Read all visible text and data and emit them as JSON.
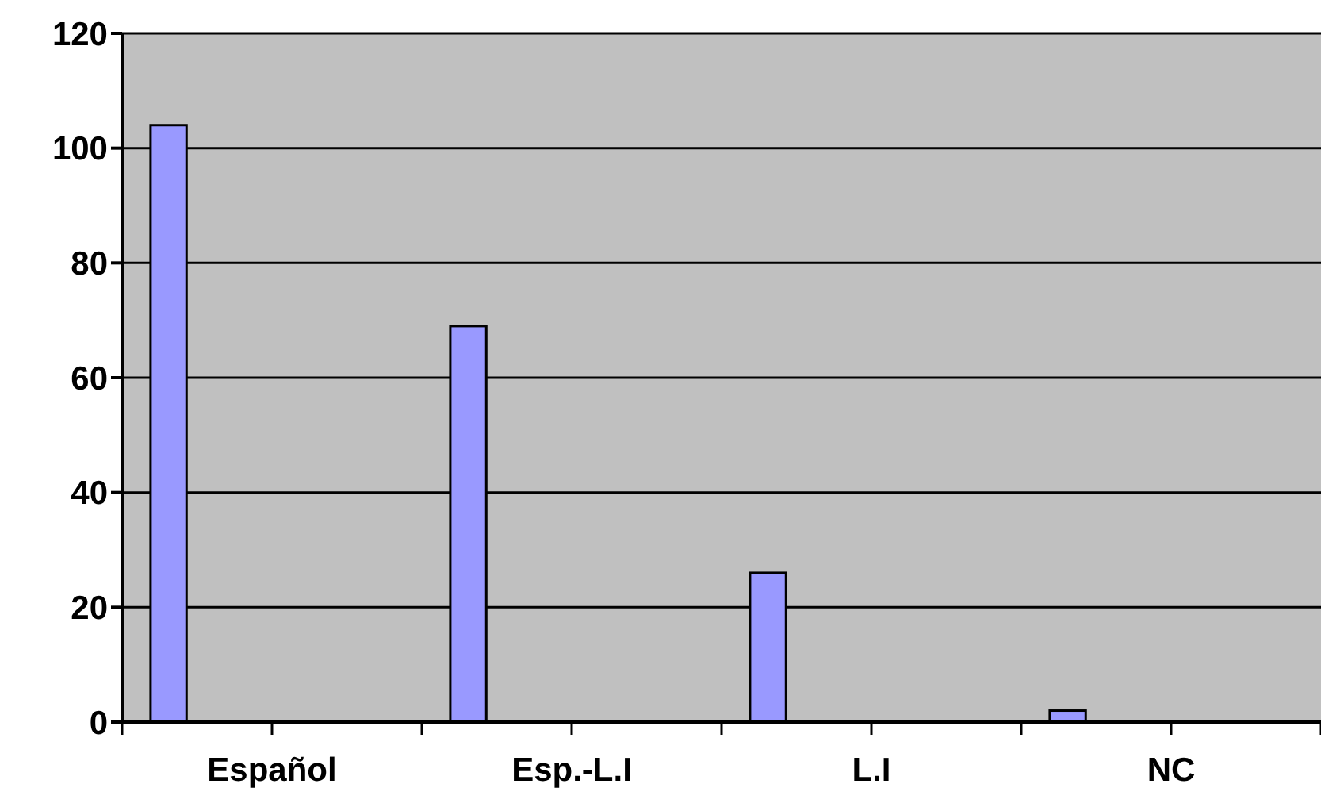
{
  "chart_data": {
    "type": "bar",
    "categories": [
      "Español",
      "Esp.-L.I",
      "L.I",
      "NC"
    ],
    "values": [
      104,
      69,
      26,
      2
    ],
    "color": "#9999ff",
    "ylim": [
      0,
      120
    ],
    "yticks": [
      0,
      20,
      40,
      60,
      80,
      100,
      120
    ],
    "grid": "y"
  }
}
